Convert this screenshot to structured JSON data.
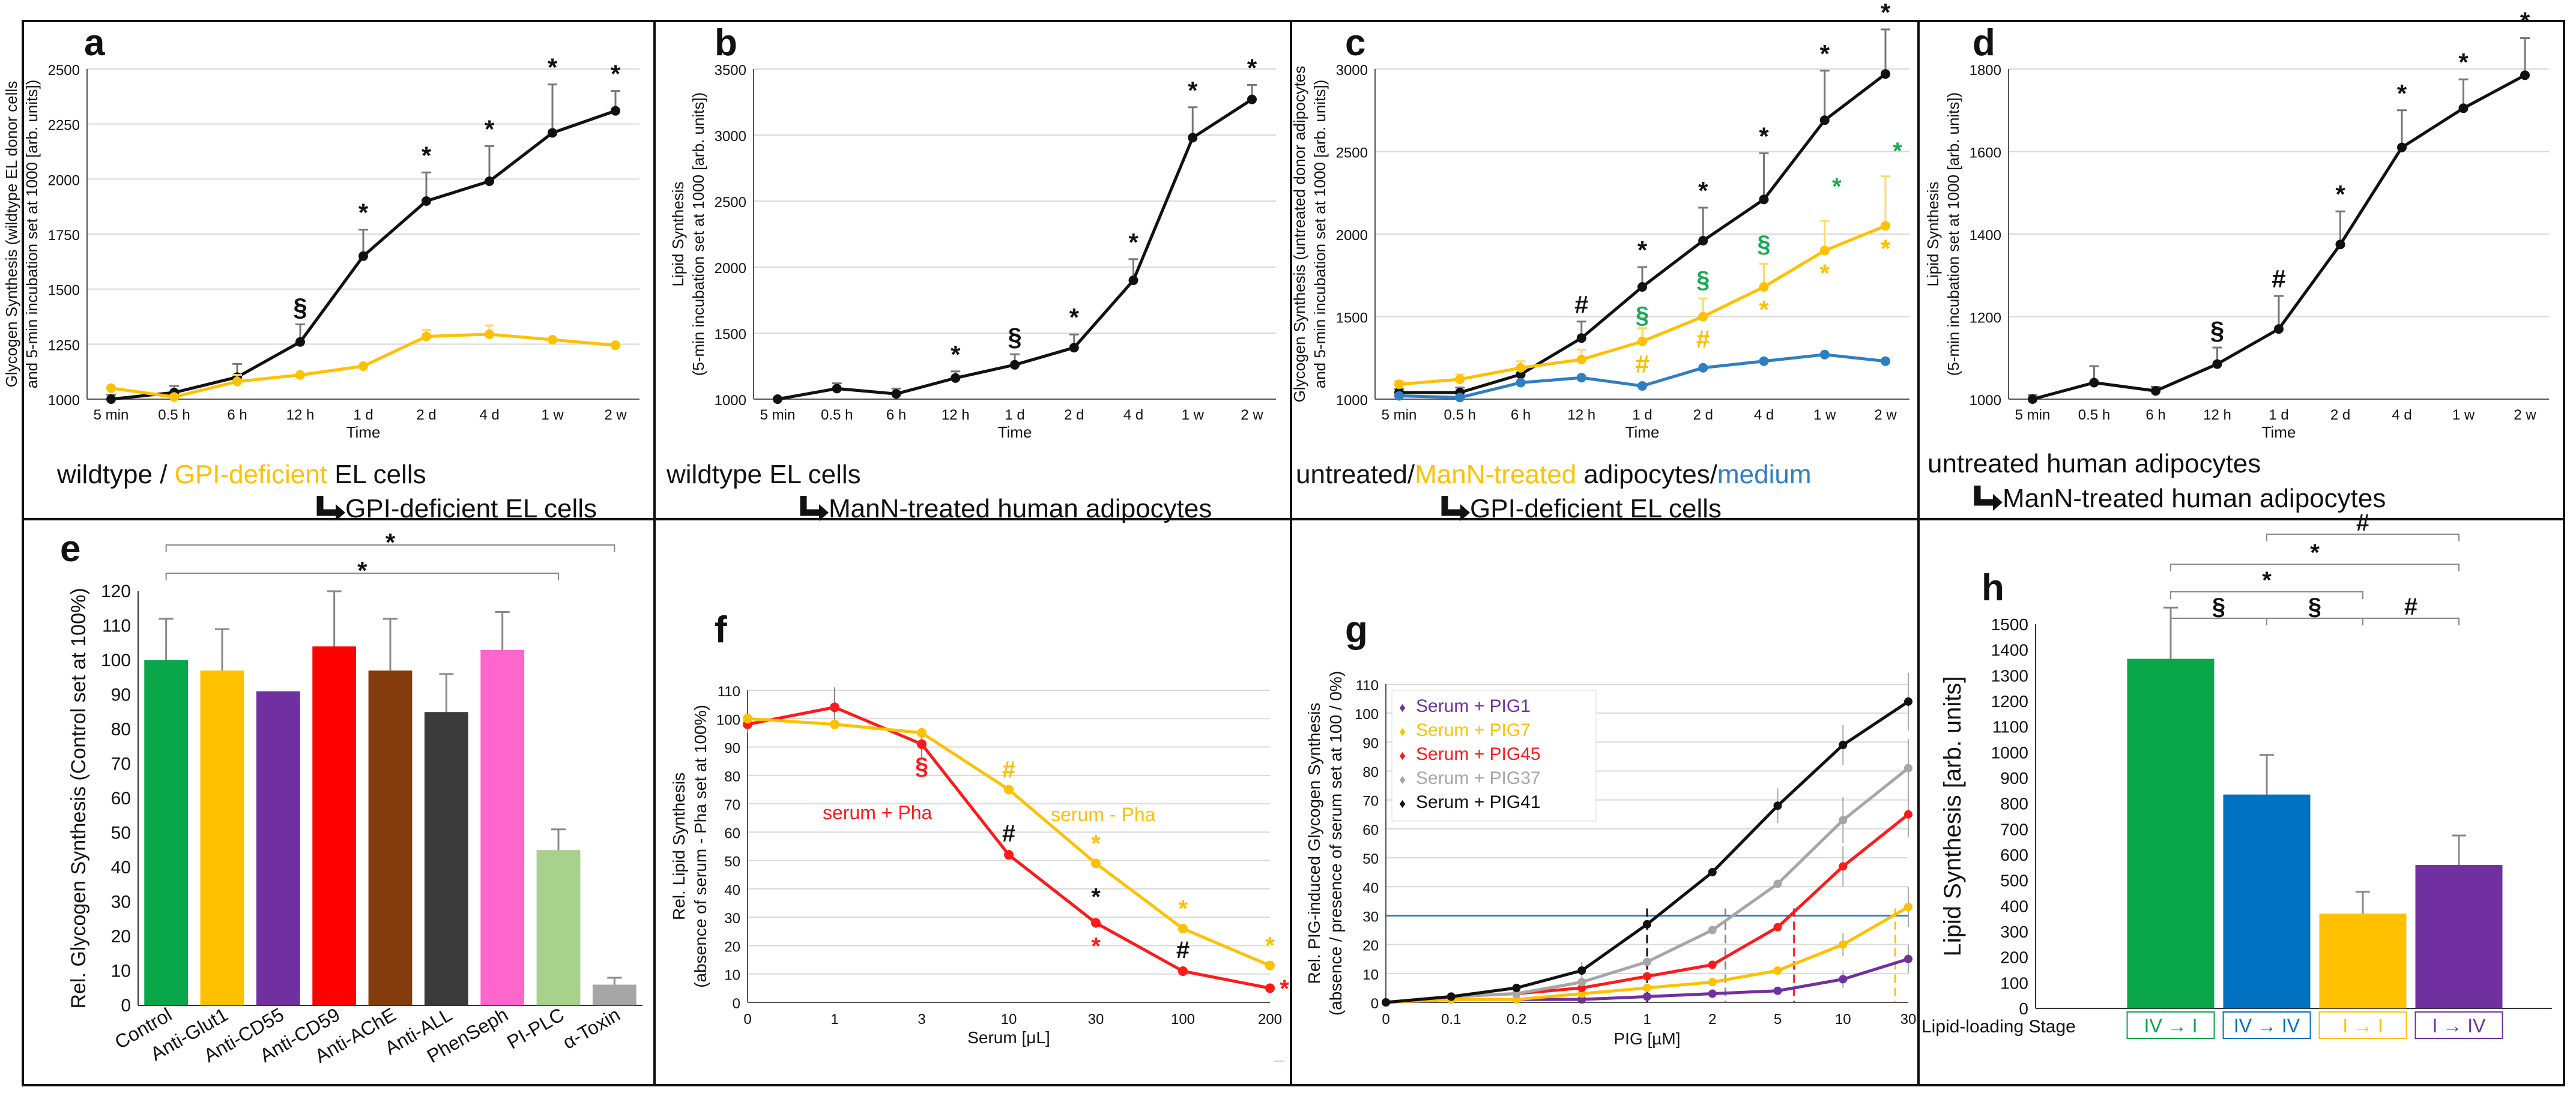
{
  "colors": {
    "black": "#111111",
    "orange": "#ffc000",
    "blue": "#2e7ec4",
    "red": "#ff1a1a",
    "purple": "#7030a0",
    "gray": "#a6a6a6",
    "green": "#0a9a4a",
    "sig_green": "#1aaa5a",
    "bar_green": "#0aa64a",
    "bar_orange": "#ffc000",
    "bar_purple": "#7030a0",
    "bar_red": "#ff0000",
    "bar_brown": "#843c0c",
    "bar_darkgray": "#3b3b3b",
    "bar_pink": "#ff66cc",
    "bar_lightgreen": "#a9d18e",
    "bar_gray": "#a6a6a6",
    "bar_blue": "#0070c0"
  },
  "chart_data": [
    {
      "id": "a",
      "letter": "a",
      "type": "line",
      "ylabel_lines": [
        "Glycogen Synthesis (wildtype EL donor cells",
        "and 5-min incubation set at 1000 [arb. units])"
      ],
      "xlabel": "Time",
      "categories": [
        "5 min",
        "0.5 h",
        "6 h",
        "12 h",
        "1 d",
        "2 d",
        "4 d",
        "1 w",
        "2 w"
      ],
      "ylim": [
        1000,
        2500
      ],
      "ticks": [
        1000,
        1250,
        1500,
        1750,
        2000,
        2250,
        2500
      ],
      "series": [
        {
          "name": "wildtype",
          "color": "black",
          "values": [
            1000,
            1030,
            1100,
            1260,
            1650,
            1900,
            1990,
            2210,
            2310
          ],
          "errors": [
            20,
            30,
            60,
            80,
            120,
            130,
            160,
            220,
            90
          ],
          "marks": [
            null,
            null,
            null,
            "§",
            "*",
            "*",
            "*",
            "*",
            "*"
          ]
        },
        {
          "name": "GPI-deficient",
          "color": "orange",
          "values": [
            1050,
            1010,
            1080,
            1110,
            1150,
            1285,
            1295,
            1270,
            1245
          ],
          "errors": [
            0,
            0,
            30,
            0,
            0,
            30,
            40,
            0,
            0
          ],
          "marks": []
        }
      ],
      "caption": [
        {
          "parts": [
            [
              "wildtype / ",
              "black"
            ],
            [
              "GPI-deficient",
              "orange"
            ],
            [
              " EL cells",
              "black"
            ]
          ]
        },
        {
          "arrow": true,
          "parts": [
            [
              "GPI-deficient EL cells",
              "black"
            ]
          ]
        }
      ]
    },
    {
      "id": "b",
      "letter": "b",
      "type": "line",
      "ylabel_lines": [
        "Lipid Synthesis",
        "(5-min incubation set at 1000 [arb. units])"
      ],
      "xlabel": "Time",
      "categories": [
        "5 min",
        "0.5 h",
        "6 h",
        "12 h",
        "1 d",
        "2 d",
        "4 d",
        "1 w",
        "2 w"
      ],
      "ylim": [
        1000,
        3500
      ],
      "ticks": [
        1000,
        1500,
        2000,
        2500,
        3000,
        3500
      ],
      "series": [
        {
          "name": "ManN-treated",
          "color": "black",
          "values": [
            1000,
            1080,
            1040,
            1160,
            1260,
            1390,
            1900,
            2980,
            3270
          ],
          "errors": [
            10,
            40,
            40,
            50,
            80,
            100,
            160,
            230,
            110
          ],
          "marks": [
            null,
            null,
            null,
            "*",
            "§",
            "*",
            "*",
            "*",
            "*"
          ]
        }
      ],
      "caption": [
        {
          "parts": [
            [
              "wildtype EL cells",
              "black"
            ]
          ]
        },
        {
          "arrow": true,
          "parts": [
            [
              "ManN-treated human adipocytes",
              "black"
            ]
          ]
        }
      ]
    },
    {
      "id": "c",
      "letter": "c",
      "type": "line",
      "ylabel_lines": [
        "Glycogen Synthesis (untreated donor adipocytes",
        "and 5-min incubation set at 1000 [arb. units])"
      ],
      "xlabel": "Time",
      "categories": [
        "5 min",
        "0.5 h",
        "6 h",
        "12 h",
        "1 d",
        "2 d",
        "4 d",
        "1 w",
        "2 w"
      ],
      "ylim": [
        1000,
        3000
      ],
      "ticks": [
        1000,
        1500,
        2000,
        2500,
        3000
      ],
      "series": [
        {
          "name": "untreated",
          "color": "black",
          "values": [
            1040,
            1040,
            1150,
            1370,
            1680,
            1960,
            2210,
            2690,
            2970
          ],
          "errors": [
            20,
            30,
            40,
            100,
            120,
            200,
            280,
            300,
            270
          ],
          "marks": [
            null,
            null,
            null,
            "#",
            "*",
            "*",
            "*",
            "*",
            "*"
          ]
        },
        {
          "name": "ManN-treated",
          "color": "orange",
          "values": [
            1090,
            1120,
            1190,
            1240,
            1350,
            1500,
            1680,
            1900,
            2050
          ],
          "errors": [
            20,
            30,
            40,
            60,
            80,
            110,
            140,
            180,
            300
          ],
          "marks": [
            null,
            null,
            null,
            null,
            "#",
            "#",
            "*",
            "*",
            "*"
          ],
          "mark_below": true
        },
        {
          "name": "medium",
          "color": "blue",
          "values": [
            1020,
            1010,
            1100,
            1130,
            1080,
            1190,
            1230,
            1270,
            1230
          ],
          "errors": [
            0,
            0,
            0,
            0,
            0,
            0,
            0,
            0,
            0
          ],
          "marks": []
        }
      ],
      "green_marks": [
        null,
        null,
        null,
        null,
        "§",
        "§",
        "§",
        "*",
        "*"
      ],
      "caption": [
        {
          "parts": [
            [
              "untreated/",
              "black"
            ],
            [
              "ManN-treated",
              "orange"
            ],
            [
              " adipocytes/",
              "black"
            ],
            [
              "medium",
              "blue"
            ]
          ]
        },
        {
          "arrow": true,
          "parts": [
            [
              "GPI-deficient EL cells",
              "black"
            ]
          ]
        }
      ]
    },
    {
      "id": "d",
      "letter": "d",
      "type": "line",
      "ylabel_lines": [
        "Lipid Synthesis",
        "(5-min incubation set at 1000 [arb. units])"
      ],
      "xlabel": "Time",
      "categories": [
        "5 min",
        "0.5 h",
        "6 h",
        "12 h",
        "1 d",
        "2 d",
        "4 d",
        "1 w",
        "2 w"
      ],
      "ylim": [
        1000,
        1800
      ],
      "ticks": [
        1000,
        1200,
        1400,
        1600,
        1800
      ],
      "series": [
        {
          "name": "ManN-treated",
          "color": "black",
          "values": [
            1000,
            1040,
            1020,
            1085,
            1170,
            1375,
            1610,
            1705,
            1785
          ],
          "errors": [
            10,
            40,
            10,
            40,
            80,
            80,
            90,
            70,
            90
          ],
          "marks": [
            null,
            null,
            null,
            "§",
            "#",
            "*",
            "*",
            "*",
            "*"
          ]
        }
      ],
      "caption": [
        {
          "parts": [
            [
              "untreated human adipocytes",
              "black"
            ]
          ]
        },
        {
          "arrow": true,
          "parts": [
            [
              "ManN-treated human adipocytes",
              "black"
            ]
          ]
        }
      ]
    },
    {
      "id": "e",
      "letter": "e",
      "type": "bar",
      "ylabel_lines": [
        "Rel. Glycogen Synthesis (Control set at 100%)"
      ],
      "ylim": [
        0,
        120
      ],
      "ticks": [
        0,
        10,
        20,
        30,
        40,
        50,
        60,
        70,
        80,
        90,
        100,
        110,
        120
      ],
      "categories": [
        "Control",
        "Anti-Glut1",
        "Anti-CD55",
        "Anti-CD59",
        "Anti-AChE",
        "Anti-ALL",
        "PhenSeph",
        "PI-PLC",
        "α-Toxin"
      ],
      "values": [
        100,
        97,
        91,
        104,
        97,
        85,
        103,
        45,
        6
      ],
      "errors": [
        12,
        12,
        0,
        16,
        15,
        11,
        11,
        6,
        2
      ],
      "bar_colors": [
        "bar_green",
        "bar_orange",
        "bar_purple",
        "bar_red",
        "bar_brown",
        "bar_darkgray",
        "bar_pink",
        "bar_lightgreen",
        "bar_gray"
      ],
      "brackets": [
        {
          "from": 0,
          "to": 8,
          "label": "*"
        },
        {
          "from": 0,
          "to": 7,
          "label": "*"
        }
      ]
    },
    {
      "id": "f",
      "letter": "f",
      "type": "line",
      "ylabel_lines": [
        "Rel. Lipid Synthesis",
        "(absence of serum - Pha set at 100%)"
      ],
      "xlabel": "Serum [μL]",
      "categories": [
        "0",
        "1",
        "3",
        "10",
        "30",
        "100",
        "200"
      ],
      "ylim": [
        0,
        110
      ],
      "ticks": [
        0,
        10,
        20,
        30,
        40,
        50,
        60,
        70,
        80,
        90,
        100,
        110
      ],
      "series": [
        {
          "name": "serum + Pha",
          "color": "red",
          "values": [
            98,
            104,
            91,
            52,
            28,
            11,
            5
          ],
          "errors": [
            3,
            7,
            5,
            0,
            0,
            0,
            0
          ],
          "marks": [
            null,
            null,
            "§",
            "#",
            "*",
            "#",
            "*"
          ]
        },
        {
          "name": "serum - Pha",
          "color": "orange",
          "values": [
            100,
            98,
            95,
            75,
            49,
            26,
            13
          ],
          "errors": [
            0,
            0,
            0,
            0,
            0,
            0,
            0
          ],
          "marks": [
            null,
            null,
            null,
            "#",
            "*",
            "*",
            "*"
          ]
        }
      ],
      "labels": {
        "plus": "serum + Pha",
        "minus": "serum - Pha"
      },
      "footnote": "—"
    },
    {
      "id": "g",
      "letter": "g",
      "type": "line",
      "ylabel_lines": [
        "Rel. PIG-induced Glycogen Synthesis",
        "(absence / presence of serum set at 100 / 0%)"
      ],
      "xlabel": "PIG [µM]",
      "categories": [
        "0",
        "0.1",
        "0.2",
        "0.5",
        "1",
        "2",
        "5",
        "10",
        "30"
      ],
      "ylim": [
        0,
        110
      ],
      "ticks": [
        0,
        10,
        20,
        30,
        40,
        50,
        60,
        70,
        80,
        90,
        100,
        110
      ],
      "threshold": 30,
      "series": [
        {
          "name": "Serum + PIG1",
          "color": "purple",
          "values": [
            0,
            1,
            1,
            1,
            2,
            3,
            4,
            8,
            15
          ],
          "errors": [
            0,
            0,
            0,
            0,
            0,
            0,
            0,
            3,
            5
          ]
        },
        {
          "name": "Serum + PIG7",
          "color": "orange",
          "values": [
            0,
            1,
            1,
            3,
            5,
            7,
            11,
            20,
            33
          ],
          "errors": [
            0,
            0,
            0,
            0,
            0,
            0,
            0,
            4,
            7
          ]
        },
        {
          "name": "Serum + PIG45",
          "color": "red",
          "values": [
            0,
            2,
            3,
            5,
            9,
            13,
            26,
            47,
            65
          ],
          "errors": [
            0,
            0,
            0,
            0,
            0,
            0,
            0,
            7,
            8
          ]
        },
        {
          "name": "Serum + PIG37",
          "color": "gray",
          "values": [
            0,
            2,
            3,
            7,
            14,
            25,
            41,
            63,
            81
          ],
          "errors": [
            0,
            0,
            0,
            0,
            0,
            0,
            0,
            8,
            10
          ]
        },
        {
          "name": "Serum + PIG41",
          "color": "black",
          "values": [
            0,
            2,
            5,
            11,
            27,
            45,
            68,
            89,
            104
          ],
          "errors": [
            0,
            0,
            0,
            3,
            0,
            0,
            6,
            7,
            10
          ]
        }
      ],
      "legend": [
        "Serum + PIG1",
        "Serum + PIG7",
        "Serum + PIG45",
        "Serum + PIG37",
        "Serum + PIG41"
      ],
      "legend_colors": [
        "purple",
        "orange",
        "red",
        "gray",
        "black"
      ]
    },
    {
      "id": "h",
      "letter": "h",
      "type": "bar",
      "ylabel_lines": [
        "Lipid Synthesis [arb. units]"
      ],
      "ylim": [
        0,
        1500
      ],
      "ticks": [
        0,
        100,
        200,
        300,
        400,
        500,
        600,
        700,
        800,
        900,
        1000,
        1100,
        1200,
        1300,
        1400,
        1500
      ],
      "categories": [
        "IV → I",
        "IV → IV",
        "I → I",
        "I → IV"
      ],
      "values": [
        1365,
        835,
        370,
        560
      ],
      "errors": [
        200,
        155,
        85,
        115
      ],
      "bar_colors": [
        "bar_green",
        "bar_blue",
        "bar_orange",
        "bar_purple"
      ],
      "stage_label": "Lipid-loading Stage",
      "brackets": [
        {
          "from": 1,
          "to": 3,
          "label": "#",
          "level": 4
        },
        {
          "from": 0,
          "to": 3,
          "label": "*",
          "level": 3
        },
        {
          "from": 0,
          "to": 2,
          "label": "*",
          "level": 2
        },
        {
          "from": 0,
          "to": 1,
          "label": "§",
          "level": 1
        },
        {
          "from": 1,
          "to": 2,
          "label": "§",
          "level": 1
        },
        {
          "from": 2,
          "to": 3,
          "label": "#",
          "level": 1
        }
      ]
    }
  ]
}
